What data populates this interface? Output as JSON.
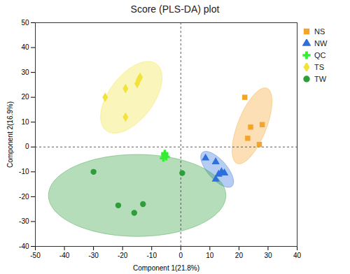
{
  "chart_data": {
    "type": "scatter",
    "title": "Score (PLS-DA) plot",
    "x_label": "Component 1(21.8%)",
    "y_label": "Component 2(16.9%)",
    "xlim": [
      -50,
      40
    ],
    "xticks": [
      -50,
      -40,
      -30,
      -20,
      -10,
      0,
      10,
      20,
      30,
      40
    ],
    "ylim": [
      -40,
      50
    ],
    "yticks": [
      -40,
      -30,
      -20,
      -10,
      0,
      10,
      20,
      30,
      40,
      50
    ],
    "legend": "right",
    "series": [
      {
        "name": "NS",
        "color": "#f5a42a",
        "marker": "square",
        "x": [
          22,
          24,
          28,
          23,
          27
        ],
        "values": [
          20,
          8,
          9,
          3.5,
          1
        ],
        "ellipse": {
          "center": [
            24.5,
            8.5
          ],
          "radii": [
            16,
            5
          ],
          "angle": 72
        }
      },
      {
        "name": "NW",
        "color": "#2f6fdc",
        "marker": "triangle",
        "x": [
          8.5,
          12,
          14,
          15,
          13,
          12
        ],
        "values": [
          -4.5,
          -6,
          -10,
          -10.5,
          -11,
          -13
        ],
        "ellipse": {
          "center": [
            12.5,
            -9
          ],
          "radii": [
            8.5,
            3.5
          ],
          "angle": -55
        }
      },
      {
        "name": "QC",
        "color": "#33ee33",
        "marker": "cross",
        "x": [
          -5.5,
          -5.5,
          -5,
          -6,
          -5.5
        ],
        "values": [
          -2.5,
          -3.5,
          -4,
          -4.5,
          -3
        ]
      },
      {
        "name": "TS",
        "color": "#f2e33c",
        "marker": "diamond",
        "x": [
          -26,
          -19,
          -15,
          -14,
          -19,
          -14.5
        ],
        "values": [
          20,
          23.5,
          25.5,
          28,
          12,
          27
        ],
        "ellipse": {
          "center": [
            -17,
            20
          ],
          "radii": [
            16,
            8
          ],
          "angle": 60
        }
      },
      {
        "name": "TW",
        "color": "#2e9e3a",
        "marker": "circle",
        "x": [
          -30,
          0.5,
          -21.5,
          -13,
          -16
        ],
        "values": [
          -10,
          -10.5,
          -23.5,
          -23,
          -26.5
        ],
        "ellipse": {
          "center": [
            -15,
            -19.5
          ],
          "radii": [
            30.5,
            16.5
          ],
          "angle": 0
        }
      }
    ]
  }
}
